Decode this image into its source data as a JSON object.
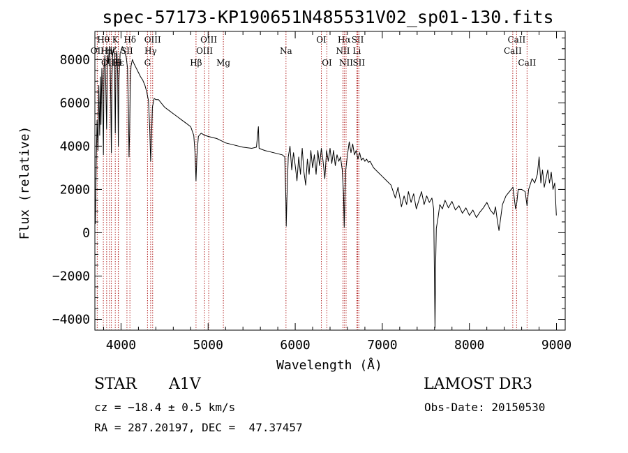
{
  "chart_data": {
    "type": "line",
    "title": "spec-57173-KP190651N485531V02_sp01-130.fits",
    "xlabel": "Wavelength (Å)",
    "ylabel": "Flux (relative)",
    "xlim": [
      3700,
      9100
    ],
    "ylim": [
      -4500,
      9300
    ],
    "x_ticks": [
      4000,
      5000,
      6000,
      7000,
      8000,
      9000
    ],
    "y_ticks": [
      -4000,
      -2000,
      0,
      2000,
      4000,
      6000,
      8000
    ],
    "grid": false,
    "series": [
      {
        "name": "spectrum",
        "points": [
          [
            3705,
            400
          ],
          [
            3715,
            3200
          ],
          [
            3725,
            5200
          ],
          [
            3735,
            3800
          ],
          [
            3745,
            6800
          ],
          [
            3755,
            4500
          ],
          [
            3765,
            7200
          ],
          [
            3770,
            5000
          ],
          [
            3780,
            7600
          ],
          [
            3790,
            6400
          ],
          [
            3798,
            3600
          ],
          [
            3805,
            7600
          ],
          [
            3815,
            8200
          ],
          [
            3825,
            6800
          ],
          [
            3835,
            4800
          ],
          [
            3845,
            8200
          ],
          [
            3855,
            7800
          ],
          [
            3865,
            8600
          ],
          [
            3875,
            8000
          ],
          [
            3882,
            6200
          ],
          [
            3889,
            3700
          ],
          [
            3896,
            7200
          ],
          [
            3905,
            8300
          ],
          [
            3915,
            8500
          ],
          [
            3925,
            8200
          ],
          [
            3934,
            4600
          ],
          [
            3942,
            7800
          ],
          [
            3952,
            8400
          ],
          [
            3962,
            7300
          ],
          [
            3969,
            4000
          ],
          [
            3976,
            7000
          ],
          [
            3990,
            8300
          ],
          [
            4000,
            8400
          ],
          [
            4015,
            8600
          ],
          [
            4030,
            8500
          ],
          [
            4045,
            8300
          ],
          [
            4060,
            8100
          ],
          [
            4075,
            7600
          ],
          [
            4085,
            5600
          ],
          [
            4092,
            3500
          ],
          [
            4098,
            4500
          ],
          [
            4106,
            6800
          ],
          [
            4115,
            7700
          ],
          [
            4130,
            8000
          ],
          [
            4150,
            7800
          ],
          [
            4175,
            7600
          ],
          [
            4200,
            7400
          ],
          [
            4225,
            7200
          ],
          [
            4250,
            7050
          ],
          [
            4275,
            6800
          ],
          [
            4295,
            6500
          ],
          [
            4315,
            6100
          ],
          [
            4330,
            4800
          ],
          [
            4340,
            3300
          ],
          [
            4348,
            4200
          ],
          [
            4360,
            5800
          ],
          [
            4380,
            6200
          ],
          [
            4400,
            6150
          ],
          [
            4430,
            6150
          ],
          [
            4470,
            5950
          ],
          [
            4500,
            5800
          ],
          [
            4550,
            5650
          ],
          [
            4600,
            5500
          ],
          [
            4650,
            5350
          ],
          [
            4700,
            5200
          ],
          [
            4750,
            5050
          ],
          [
            4800,
            4900
          ],
          [
            4835,
            4500
          ],
          [
            4850,
            3700
          ],
          [
            4861,
            2400
          ],
          [
            4872,
            3600
          ],
          [
            4888,
            4450
          ],
          [
            4920,
            4600
          ],
          [
            4960,
            4500
          ],
          [
            5000,
            4450
          ],
          [
            5050,
            4400
          ],
          [
            5100,
            4350
          ],
          [
            5150,
            4250
          ],
          [
            5200,
            4150
          ],
          [
            5300,
            4050
          ],
          [
            5400,
            3950
          ],
          [
            5500,
            3900
          ],
          [
            5555,
            3950
          ],
          [
            5577,
            4900
          ],
          [
            5585,
            3900
          ],
          [
            5650,
            3800
          ],
          [
            5750,
            3700
          ],
          [
            5850,
            3600
          ],
          [
            5880,
            3500
          ],
          [
            5893,
            1500
          ],
          [
            5897,
            300
          ],
          [
            5905,
            1600
          ],
          [
            5920,
            3500
          ],
          [
            5940,
            4000
          ],
          [
            5960,
            2900
          ],
          [
            5980,
            3700
          ],
          [
            6000,
            3100
          ],
          [
            6020,
            2400
          ],
          [
            6040,
            3500
          ],
          [
            6060,
            2700
          ],
          [
            6080,
            3900
          ],
          [
            6100,
            2800
          ],
          [
            6120,
            2200
          ],
          [
            6140,
            3400
          ],
          [
            6160,
            2700
          ],
          [
            6180,
            3800
          ],
          [
            6200,
            3000
          ],
          [
            6220,
            3600
          ],
          [
            6240,
            2700
          ],
          [
            6260,
            3800
          ],
          [
            6280,
            3100
          ],
          [
            6300,
            3900
          ],
          [
            6320,
            3300
          ],
          [
            6340,
            2500
          ],
          [
            6360,
            3800
          ],
          [
            6380,
            3300
          ],
          [
            6400,
            3900
          ],
          [
            6420,
            3200
          ],
          [
            6440,
            3800
          ],
          [
            6460,
            3100
          ],
          [
            6480,
            3600
          ],
          [
            6500,
            3300
          ],
          [
            6520,
            3500
          ],
          [
            6540,
            2900
          ],
          [
            6555,
            1800
          ],
          [
            6563,
            250
          ],
          [
            6570,
            1500
          ],
          [
            6580,
            2900
          ],
          [
            6600,
            3600
          ],
          [
            6620,
            4200
          ],
          [
            6640,
            3700
          ],
          [
            6660,
            4100
          ],
          [
            6680,
            3600
          ],
          [
            6700,
            3800
          ],
          [
            6720,
            3400
          ],
          [
            6740,
            3700
          ],
          [
            6760,
            3350
          ],
          [
            6780,
            3450
          ],
          [
            6800,
            3300
          ],
          [
            6820,
            3400
          ],
          [
            6840,
            3250
          ],
          [
            6860,
            3300
          ],
          [
            6880,
            3150
          ],
          [
            6900,
            3000
          ],
          [
            6950,
            2800
          ],
          [
            7000,
            2600
          ],
          [
            7050,
            2400
          ],
          [
            7100,
            2200
          ],
          [
            7150,
            1600
          ],
          [
            7180,
            2100
          ],
          [
            7220,
            1200
          ],
          [
            7250,
            1700
          ],
          [
            7280,
            1300
          ],
          [
            7300,
            1900
          ],
          [
            7330,
            1400
          ],
          [
            7360,
            1800
          ],
          [
            7390,
            1100
          ],
          [
            7420,
            1500
          ],
          [
            7450,
            1900
          ],
          [
            7480,
            1300
          ],
          [
            7510,
            1700
          ],
          [
            7540,
            1400
          ],
          [
            7570,
            1600
          ],
          [
            7590,
            1100
          ],
          [
            7600,
            -2500
          ],
          [
            7605,
            -4400
          ],
          [
            7612,
            -1500
          ],
          [
            7620,
            200
          ],
          [
            7640,
            700
          ],
          [
            7660,
            1300
          ],
          [
            7690,
            1100
          ],
          [
            7720,
            1500
          ],
          [
            7760,
            1150
          ],
          [
            7800,
            1450
          ],
          [
            7840,
            1050
          ],
          [
            7880,
            1250
          ],
          [
            7920,
            900
          ],
          [
            7960,
            1150
          ],
          [
            8000,
            800
          ],
          [
            8040,
            1050
          ],
          [
            8080,
            700
          ],
          [
            8120,
            950
          ],
          [
            8160,
            1150
          ],
          [
            8200,
            1400
          ],
          [
            8240,
            1050
          ],
          [
            8280,
            850
          ],
          [
            8300,
            1200
          ],
          [
            8320,
            600
          ],
          [
            8340,
            100
          ],
          [
            8360,
            700
          ],
          [
            8380,
            1300
          ],
          [
            8420,
            1700
          ],
          [
            8460,
            1900
          ],
          [
            8500,
            2100
          ],
          [
            8530,
            1100
          ],
          [
            8545,
            1400
          ],
          [
            8560,
            2000
          ],
          [
            8600,
            2000
          ],
          [
            8640,
            1900
          ],
          [
            8662,
            1250
          ],
          [
            8680,
            2000
          ],
          [
            8720,
            2500
          ],
          [
            8750,
            2300
          ],
          [
            8780,
            2700
          ],
          [
            8800,
            3500
          ],
          [
            8820,
            2300
          ],
          [
            8840,
            2900
          ],
          [
            8860,
            2100
          ],
          [
            8880,
            2500
          ],
          [
            8900,
            2900
          ],
          [
            8920,
            2300
          ],
          [
            8940,
            2800
          ],
          [
            8960,
            2000
          ],
          [
            8980,
            2300
          ],
          [
            8990,
            1500
          ],
          [
            8998,
            800
          ]
        ]
      }
    ],
    "line_ids": [
      {
        "label": "Hθ",
        "wavelength": 3797,
        "row": 1
      },
      {
        "label": "OII",
        "wavelength": 3727,
        "row": 2
      },
      {
        "label": "OIII",
        "wavelength": 3869,
        "row": 3
      },
      {
        "label": "K",
        "wavelength": 3934,
        "row": 1
      },
      {
        "label": "Hη",
        "wavelength": 3835,
        "row": 2
      },
      {
        "label": "Hζ",
        "wavelength": 3889,
        "row": 2
      },
      {
        "label": "Hε",
        "wavelength": 3970,
        "row": 3
      },
      {
        "label": "H",
        "wavelength": 3968,
        "row": 3
      },
      {
        "label": "Hδ",
        "wavelength": 4102,
        "row": 1
      },
      {
        "label": "SII",
        "wavelength": 4068,
        "row": 2
      },
      {
        "label": "OIII",
        "wavelength": 4363,
        "row": 1
      },
      {
        "label": "Hγ",
        "wavelength": 4340,
        "row": 2
      },
      {
        "label": "G",
        "wavelength": 4304,
        "row": 3
      },
      {
        "label": "Hβ",
        "wavelength": 4861,
        "row": 3
      },
      {
        "label": "OIII",
        "wavelength": 5007,
        "row": 1
      },
      {
        "label": "OIII",
        "wavelength": 4959,
        "row": 2
      },
      {
        "label": "Mg",
        "wavelength": 5175,
        "row": 3
      },
      {
        "label": "Na",
        "wavelength": 5894,
        "row": 2
      },
      {
        "label": "OI",
        "wavelength": 6300,
        "row": 1
      },
      {
        "label": "OI",
        "wavelength": 6364,
        "row": 3
      },
      {
        "label": "Hα",
        "wavelength": 6563,
        "row": 1
      },
      {
        "label": "NII",
        "wavelength": 6548,
        "row": 2
      },
      {
        "label": "NII",
        "wavelength": 6584,
        "row": 3
      },
      {
        "label": "SII",
        "wavelength": 6717,
        "row": 1
      },
      {
        "label": "Li",
        "wavelength": 6708,
        "row": 2
      },
      {
        "label": "SII",
        "wavelength": 6731,
        "row": 3
      },
      {
        "label": "CaII",
        "wavelength": 8542,
        "row": 1
      },
      {
        "label": "CaII",
        "wavelength": 8498,
        "row": 2
      },
      {
        "label": "CaII",
        "wavelength": 8662,
        "row": 3
      }
    ]
  },
  "info": {
    "object_class": "STAR",
    "subclass": "A1V",
    "survey": "LAMOST DR3",
    "redshift_text": "cz = −18.4 ± 0.5 km/s",
    "obs_date": "Obs-Date: 20150530",
    "coords": "RA = 287.20197, DEC =  47.37457"
  },
  "colors": {
    "line_id": "#b22222",
    "spectrum": "#000000",
    "axes": "#000000"
  }
}
